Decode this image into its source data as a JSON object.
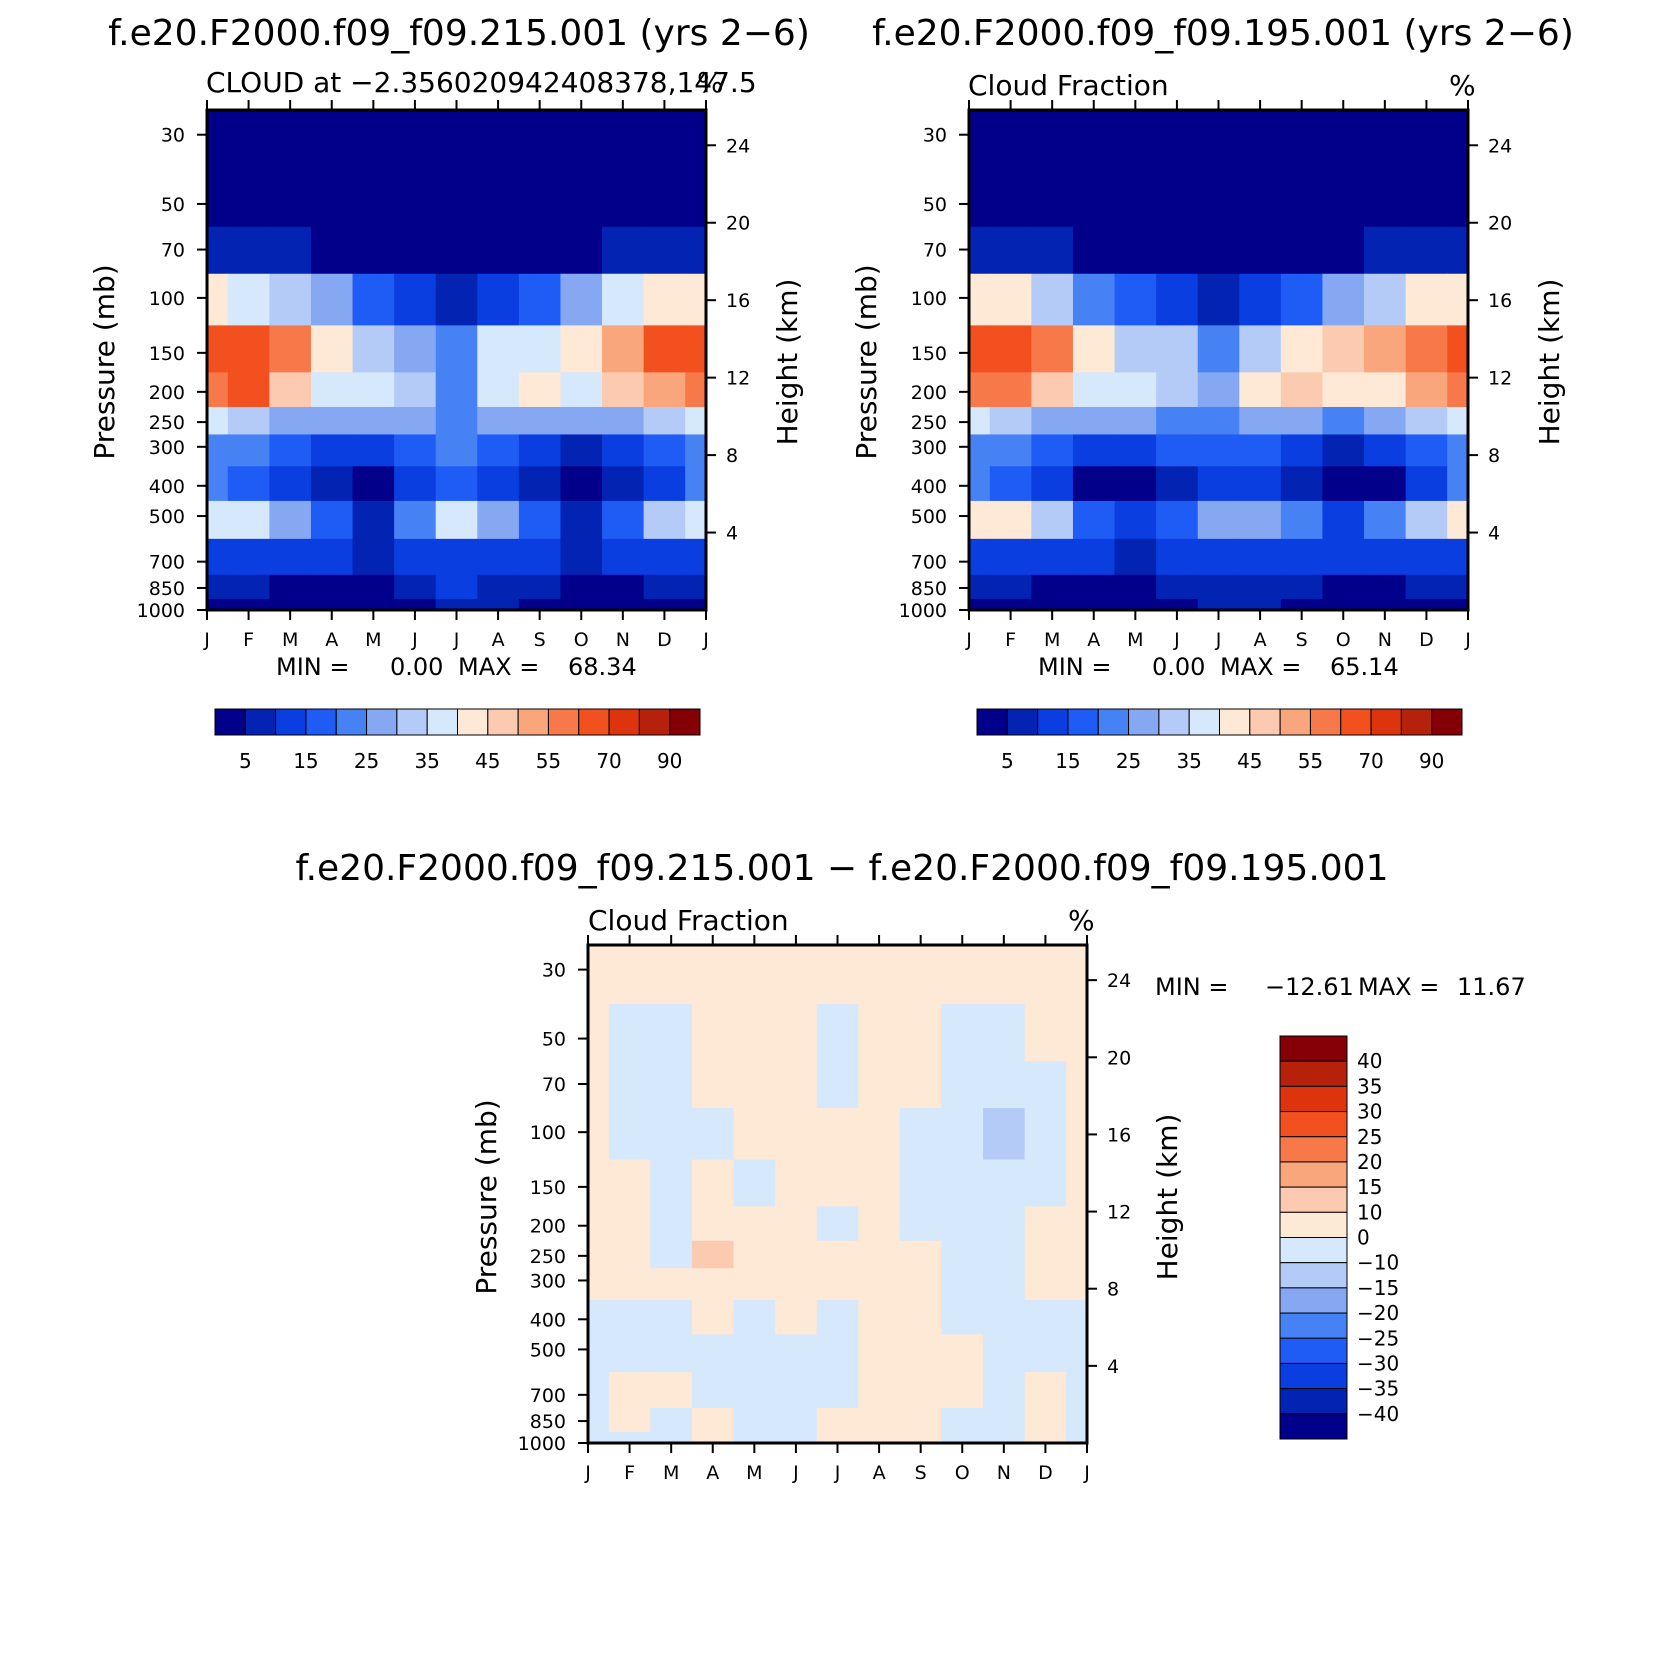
{
  "colors": {
    "frame": "#000000",
    "main_scale": [
      "#02008a",
      "#0323b3",
      "#0a3ee0",
      "#1f5cf5",
      "#4782f5",
      "#86a8f3",
      "#b5cbf7",
      "#d6e8fb",
      "#fde9d5",
      "#fccab0",
      "#f9a67c",
      "#f7794a",
      "#f3501f",
      "#de340d",
      "#b6210c",
      "#850006"
    ],
    "diff_scale": [
      "#02008a",
      "#0323b3",
      "#0a3ee0",
      "#1f5cf5",
      "#4782f5",
      "#86a8f3",
      "#b5cbf7",
      "#d6e8fb",
      "#fde9d5",
      "#fccab0",
      "#f9a67c",
      "#f7794a",
      "#f3501f",
      "#de340d",
      "#b6210c",
      "#850006"
    ]
  },
  "chart_data": [
    {
      "type": "heatmap",
      "case_title": "f.e20.F2000.f09_f09.215.001 (yrs 2−6)",
      "subtitle_left": "CLOUD at −2.356020942408378,147.5",
      "subtitle_right": "%",
      "xlabel": "",
      "ylabel": "Pressure (mb)",
      "ylabel_right": "Height (km)",
      "x_categories": [
        "J",
        "F",
        "M",
        "A",
        "M",
        "J",
        "J",
        "A",
        "S",
        "O",
        "N",
        "D",
        "J"
      ],
      "y_pressure_ticks": [
        "30",
        "50",
        "70",
        "100",
        "150",
        "200",
        "250",
        "300",
        "400",
        "500",
        "700",
        "850",
        "1000"
      ],
      "height_ticks": [
        "24",
        "20",
        "16",
        "12",
        "8",
        "4"
      ],
      "stats": {
        "min_label": "MIN =",
        "min": "0.00",
        "max_label": "MAX =",
        "max": "68.34"
      },
      "colorbar_labels": [
        "5",
        "15",
        "25",
        "35",
        "45",
        "55",
        "70",
        "90"
      ],
      "levels": [
        30,
        50,
        70,
        100,
        150,
        200,
        250,
        300,
        400,
        500,
        700,
        850,
        1000
      ],
      "months": [
        1,
        2,
        3,
        4,
        5,
        6,
        7,
        8,
        9,
        10,
        11,
        12,
        13
      ],
      "values": [
        [
          0,
          0,
          0,
          0,
          0,
          0,
          0,
          0,
          0,
          0,
          0,
          0,
          0
        ],
        [
          0,
          0,
          0,
          0,
          0,
          0,
          0,
          0,
          0,
          0,
          0,
          0,
          0
        ],
        [
          8,
          6,
          5,
          3,
          2,
          1,
          1,
          1,
          2,
          3,
          5,
          7,
          8
        ],
        [
          42,
          38,
          34,
          25,
          18,
          12,
          8,
          12,
          18,
          28,
          36,
          40,
          42
        ],
        [
          64,
          66,
          55,
          40,
          32,
          28,
          20,
          36,
          38,
          42,
          52,
          60,
          64
        ],
        [
          58,
          60,
          45,
          35,
          38,
          30,
          24,
          38,
          40,
          38,
          45,
          52,
          58
        ],
        [
          38,
          34,
          28,
          28,
          27,
          25,
          22,
          26,
          28,
          27,
          28,
          34,
          38
        ],
        [
          24,
          22,
          15,
          11,
          12,
          18,
          20,
          17,
          13,
          9,
          12,
          17,
          24
        ],
        [
          20,
          18,
          12,
          6,
          2,
          12,
          18,
          10,
          5,
          4,
          6,
          14,
          20
        ],
        [
          38,
          36,
          28,
          16,
          8,
          20,
          36,
          28,
          18,
          9,
          18,
          30,
          38
        ],
        [
          14,
          14,
          12,
          10,
          6,
          12,
          14,
          14,
          12,
          8,
          12,
          14,
          14
        ],
        [
          6,
          5,
          3,
          2,
          1,
          8,
          10,
          9,
          6,
          3,
          4,
          6,
          6
        ],
        [
          4,
          3,
          2,
          1,
          1,
          4,
          6,
          5,
          3,
          2,
          2,
          3,
          4
        ]
      ]
    },
    {
      "type": "heatmap",
      "case_title": "f.e20.F2000.f09_f09.195.001 (yrs 2−6)",
      "subtitle_left": "Cloud Fraction",
      "subtitle_right": "%",
      "xlabel": "",
      "ylabel": "Pressure (mb)",
      "ylabel_right": "Height (km)",
      "x_categories": [
        "J",
        "F",
        "M",
        "A",
        "M",
        "J",
        "J",
        "A",
        "S",
        "O",
        "N",
        "D",
        "J"
      ],
      "y_pressure_ticks": [
        "30",
        "50",
        "70",
        "100",
        "150",
        "200",
        "250",
        "300",
        "400",
        "500",
        "700",
        "850",
        "1000"
      ],
      "height_ticks": [
        "24",
        "20",
        "16",
        "12",
        "8",
        "4"
      ],
      "stats": {
        "min_label": "MIN =",
        "min": "0.00",
        "max_label": "MAX =",
        "max": "65.14"
      },
      "colorbar_labels": [
        "5",
        "15",
        "25",
        "35",
        "45",
        "55",
        "70",
        "90"
      ],
      "levels": [
        30,
        50,
        70,
        100,
        150,
        200,
        250,
        300,
        400,
        500,
        700,
        850,
        1000
      ],
      "months": [
        1,
        2,
        3,
        4,
        5,
        6,
        7,
        8,
        9,
        10,
        11,
        12,
        13
      ],
      "values": [
        [
          0,
          0,
          0,
          0,
          0,
          0,
          0,
          0,
          0,
          0,
          0,
          0,
          0
        ],
        [
          0,
          0,
          0,
          0,
          0,
          0,
          0,
          0,
          0,
          0,
          0,
          0,
          0
        ],
        [
          8,
          6,
          5,
          3,
          2,
          1,
          1,
          1,
          2,
          3,
          5,
          7,
          8
        ],
        [
          44,
          40,
          34,
          24,
          16,
          10,
          7,
          10,
          16,
          26,
          34,
          40,
          44
        ],
        [
          62,
          64,
          56,
          40,
          34,
          30,
          22,
          34,
          40,
          46,
          50,
          56,
          62
        ],
        [
          56,
          58,
          48,
          36,
          36,
          34,
          26,
          40,
          46,
          42,
          44,
          50,
          56
        ],
        [
          36,
          32,
          28,
          26,
          26,
          24,
          22,
          26,
          26,
          24,
          26,
          32,
          36
        ],
        [
          22,
          20,
          15,
          10,
          10,
          16,
          18,
          16,
          13,
          9,
          12,
          17,
          22
        ],
        [
          20,
          16,
          10,
          4,
          2,
          8,
          12,
          10,
          6,
          3,
          4,
          10,
          20
        ],
        [
          44,
          40,
          30,
          18,
          10,
          16,
          26,
          28,
          24,
          12,
          20,
          32,
          44
        ],
        [
          14,
          14,
          12,
          10,
          8,
          10,
          12,
          12,
          12,
          10,
          12,
          14,
          14
        ],
        [
          6,
          5,
          3,
          2,
          1,
          6,
          8,
          8,
          6,
          3,
          4,
          6,
          6
        ],
        [
          4,
          3,
          2,
          1,
          1,
          4,
          6,
          5,
          3,
          2,
          2,
          3,
          4
        ]
      ]
    },
    {
      "type": "heatmap",
      "case_title": "f.e20.F2000.f09_f09.215.001 − f.e20.F2000.f09_f09.195.001",
      "subtitle_left": "Cloud Fraction",
      "subtitle_right": "%",
      "xlabel": "",
      "ylabel": "Pressure (mb)",
      "ylabel_right": "Height (km)",
      "x_categories": [
        "J",
        "F",
        "M",
        "A",
        "M",
        "J",
        "J",
        "A",
        "S",
        "O",
        "N",
        "D",
        "J"
      ],
      "y_pressure_ticks": [
        "30",
        "50",
        "70",
        "100",
        "150",
        "200",
        "250",
        "300",
        "400",
        "500",
        "700",
        "850",
        "1000"
      ],
      "height_ticks": [
        "24",
        "20",
        "16",
        "12",
        "8",
        "4"
      ],
      "stats": {
        "min_label": "MIN =",
        "min": "−12.61",
        "max_label": "MAX =",
        "max": "11.67"
      },
      "colorbar_labels": [
        "40",
        "35",
        "30",
        "25",
        "20",
        "15",
        "10",
        "0",
        "−10",
        "−15",
        "−20",
        "−25",
        "−30",
        "−35",
        "−40"
      ],
      "levels": [
        30,
        50,
        70,
        100,
        150,
        200,
        250,
        300,
        400,
        500,
        700,
        850,
        1000
      ],
      "months": [
        1,
        2,
        3,
        4,
        5,
        6,
        7,
        8,
        9,
        10,
        11,
        12,
        13
      ],
      "values": [
        [
          1,
          1,
          1,
          1,
          1,
          1,
          1,
          1,
          1,
          1,
          1,
          1,
          1
        ],
        [
          1,
          -1,
          -1,
          1,
          1,
          1,
          -1,
          1,
          1,
          -1,
          -1,
          1,
          1
        ],
        [
          1,
          -1,
          -1,
          1,
          1,
          1,
          -1,
          1,
          1,
          -1,
          -1,
          -1,
          1
        ],
        [
          1,
          -1,
          -1,
          -2,
          1,
          1,
          1,
          1,
          -1,
          -1,
          -12,
          -1,
          1
        ],
        [
          1,
          1,
          -1,
          1,
          -2,
          1,
          1,
          1,
          -1,
          -1,
          -1,
          -1,
          1
        ],
        [
          1,
          1,
          -1,
          1,
          1,
          1,
          -1,
          1,
          -1,
          -1,
          -1,
          1,
          1
        ],
        [
          1,
          1,
          -1,
          11,
          1,
          1,
          1,
          1,
          1,
          -1,
          -1,
          1,
          1
        ],
        [
          1,
          1,
          1,
          1,
          1,
          1,
          1,
          1,
          1,
          -1,
          -2,
          1,
          1
        ],
        [
          -1,
          -1,
          -1,
          1,
          -1,
          1,
          -1,
          1,
          1,
          -1,
          -1,
          -1,
          -1
        ],
        [
          -1,
          -1,
          -1,
          -1,
          -1,
          -1,
          -1,
          1,
          1,
          1,
          -1,
          -1,
          -1
        ],
        [
          -1,
          1,
          1,
          -1,
          -1,
          -1,
          -1,
          1,
          1,
          1,
          -1,
          1,
          -1
        ],
        [
          -1,
          1,
          -1,
          1,
          -1,
          -1,
          1,
          1,
          1,
          -1,
          -1,
          1,
          -1
        ],
        [
          -1,
          -1,
          -1,
          1,
          -1,
          -1,
          1,
          1,
          1,
          -1,
          -1,
          1,
          -1
        ]
      ]
    }
  ]
}
